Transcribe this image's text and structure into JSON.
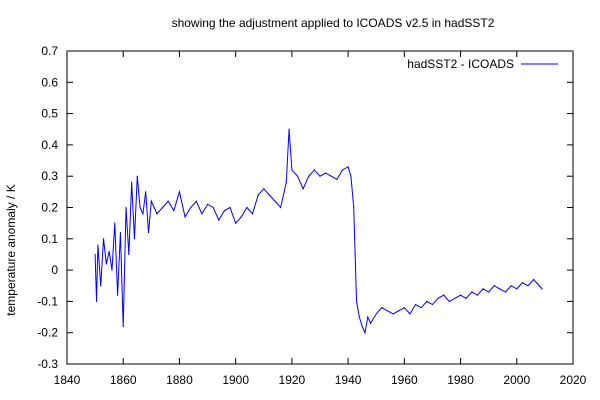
{
  "chart_data": {
    "type": "line",
    "title": "showing the adjustment applied to ICOADS v2.5 in hadSST2",
    "xlabel": "",
    "ylabel": "temperature anomaly / K",
    "xlim": [
      1840,
      2020
    ],
    "ylim": [
      -0.3,
      0.7
    ],
    "xticks": [
      1840,
      1860,
      1880,
      1900,
      1920,
      1940,
      1960,
      1980,
      2000,
      2020
    ],
    "yticks": [
      -0.3,
      -0.2,
      -0.1,
      0,
      0.1,
      0.2,
      0.3,
      0.4,
      0.5,
      0.6,
      0.7
    ],
    "grid": false,
    "legend_position": "top-right",
    "series": [
      {
        "name": "hadSST2 - ICOADS",
        "color": "#0000ff",
        "x": [
          1850,
          1850.5,
          1851,
          1852,
          1853,
          1854,
          1855,
          1856,
          1857,
          1858,
          1859,
          1860,
          1861,
          1862,
          1863,
          1864,
          1865,
          1866,
          1867,
          1868,
          1869,
          1870,
          1872,
          1874,
          1876,
          1878,
          1880,
          1882,
          1884,
          1886,
          1888,
          1890,
          1892,
          1894,
          1896,
          1898,
          1900,
          1902,
          1904,
          1906,
          1908,
          1910,
          1912,
          1914,
          1916,
          1918,
          1919,
          1920,
          1922,
          1924,
          1926,
          1928,
          1930,
          1932,
          1934,
          1936,
          1938,
          1940,
          1941,
          1942,
          1942.5,
          1943,
          1944,
          1945,
          1946,
          1947,
          1948,
          1950,
          1952,
          1954,
          1956,
          1958,
          1960,
          1962,
          1964,
          1966,
          1968,
          1970,
          1972,
          1974,
          1976,
          1978,
          1980,
          1982,
          1984,
          1986,
          1988,
          1990,
          1992,
          1994,
          1996,
          1998,
          2000,
          2002,
          2004,
          2006,
          2008,
          2009
        ],
        "values": [
          0.05,
          -0.1,
          0.08,
          -0.05,
          0.1,
          0.02,
          0.06,
          0.0,
          0.15,
          -0.08,
          0.12,
          -0.18,
          0.2,
          0.05,
          0.28,
          0.1,
          0.3,
          0.2,
          0.18,
          0.25,
          0.12,
          0.22,
          0.18,
          0.2,
          0.22,
          0.19,
          0.25,
          0.17,
          0.2,
          0.22,
          0.18,
          0.21,
          0.2,
          0.16,
          0.19,
          0.2,
          0.15,
          0.17,
          0.2,
          0.18,
          0.24,
          0.26,
          0.24,
          0.22,
          0.2,
          0.28,
          0.45,
          0.32,
          0.3,
          0.26,
          0.3,
          0.32,
          0.3,
          0.31,
          0.3,
          0.29,
          0.32,
          0.33,
          0.3,
          0.2,
          0.05,
          -0.1,
          -0.15,
          -0.18,
          -0.2,
          -0.15,
          -0.17,
          -0.14,
          -0.12,
          -0.13,
          -0.14,
          -0.13,
          -0.12,
          -0.14,
          -0.11,
          -0.12,
          -0.1,
          -0.11,
          -0.09,
          -0.08,
          -0.1,
          -0.09,
          -0.08,
          -0.09,
          -0.07,
          -0.08,
          -0.06,
          -0.07,
          -0.05,
          -0.06,
          -0.07,
          -0.05,
          -0.06,
          -0.04,
          -0.05,
          -0.03,
          -0.05,
          -0.06
        ]
      }
    ]
  }
}
